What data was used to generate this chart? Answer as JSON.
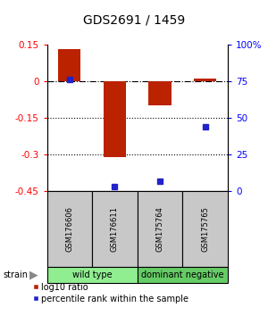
{
  "title": "GDS2691 / 1459",
  "samples": [
    "GSM176606",
    "GSM176611",
    "GSM175764",
    "GSM175765"
  ],
  "log10_ratios": [
    0.13,
    -0.31,
    -0.1,
    0.01
  ],
  "percentile_ranks": [
    76,
    3,
    7,
    44
  ],
  "groups": [
    {
      "name": "wild type",
      "samples": [
        0,
        1
      ],
      "color": "#90EE90"
    },
    {
      "name": "dominant negative",
      "samples": [
        2,
        3
      ],
      "color": "#66CC66"
    }
  ],
  "ylim_left": [
    -0.45,
    0.15
  ],
  "ylim_right": [
    0,
    100
  ],
  "yticks_left": [
    0.15,
    0,
    -0.15,
    -0.3,
    -0.45
  ],
  "yticks_right": [
    100,
    75,
    50,
    25,
    0
  ],
  "dotted_lines": [
    -0.15,
    -0.3
  ],
  "bar_color": "#BB2200",
  "dot_color": "#2222CC",
  "title_fontsize": 10,
  "tick_fontsize": 7.5,
  "sample_fontsize": 6,
  "group_fontsize": 7,
  "legend_fontsize": 7
}
